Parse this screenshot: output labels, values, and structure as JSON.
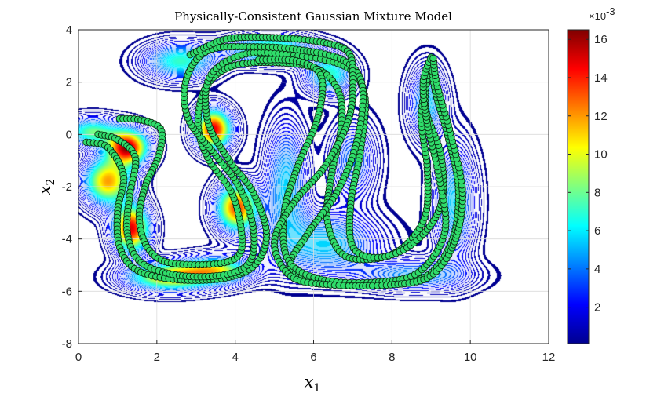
{
  "chart_data": {
    "type": "contour",
    "title": "Physically-Consistent Gaussian Mixture Model",
    "xlabel": "x",
    "xlabel_sub": "1",
    "ylabel": "x",
    "ylabel_sub": "2",
    "xlim": [
      0,
      12
    ],
    "ylim": [
      -8,
      4
    ],
    "xticks": [
      "0",
      "2",
      "4",
      "6",
      "8",
      "10",
      "12"
    ],
    "yticks": [
      "4",
      "2",
      "0",
      "-2",
      "-4",
      "-6",
      "-8"
    ],
    "grid": true,
    "colormap": "jet",
    "colorbar": {
      "ticks": [
        "16",
        "14",
        "12",
        "10",
        "8",
        "6",
        "4",
        "2"
      ],
      "tick_values": [
        16,
        14,
        12,
        10,
        8,
        6,
        4,
        2
      ],
      "range": [
        0.1,
        16.5
      ],
      "exponent_base": "×10",
      "exponent": "-3"
    },
    "gaussians": [
      {
        "mx": 1.25,
        "my": -0.5,
        "sx": 0.35,
        "sy": 0.45,
        "w": 1.0
      },
      {
        "mx": 1.35,
        "my": -3.6,
        "sx": 0.3,
        "sy": 0.6,
        "w": 0.95
      },
      {
        "mx": 0.75,
        "my": -1.8,
        "sx": 0.4,
        "sy": 0.6,
        "w": 0.75
      },
      {
        "mx": 0.35,
        "my": 0.1,
        "sx": 0.45,
        "sy": 0.35,
        "w": 0.5
      },
      {
        "mx": 3.45,
        "my": 0.2,
        "sx": 0.3,
        "sy": 0.5,
        "w": 0.95
      },
      {
        "mx": 4.05,
        "my": -2.8,
        "sx": 0.35,
        "sy": 0.6,
        "w": 0.85
      },
      {
        "mx": 3.5,
        "my": -5.2,
        "sx": 0.6,
        "sy": 0.35,
        "w": 0.6
      },
      {
        "mx": 2.3,
        "my": -5.45,
        "sx": 0.7,
        "sy": 0.35,
        "w": 0.7
      },
      {
        "mx": 2.6,
        "my": 2.8,
        "sx": 0.6,
        "sy": 0.45,
        "w": 0.45
      },
      {
        "mx": 4.9,
        "my": 3.25,
        "sx": 0.7,
        "sy": 0.35,
        "w": 0.55
      },
      {
        "mx": 6.4,
        "my": 2.3,
        "sx": 0.4,
        "sy": 0.5,
        "w": 0.45
      },
      {
        "mx": 5.3,
        "my": -1.9,
        "sx": 0.35,
        "sy": 1.5,
        "w": 0.35
      },
      {
        "mx": 6.3,
        "my": -4.2,
        "sx": 0.9,
        "sy": 0.8,
        "w": 0.35
      },
      {
        "mx": 8.6,
        "my": -5.4,
        "sx": 0.9,
        "sy": 0.4,
        "w": 0.3
      },
      {
        "mx": 9.6,
        "my": -2.6,
        "sx": 0.35,
        "sy": 1.4,
        "w": 0.35
      },
      {
        "mx": 8.9,
        "my": 1.2,
        "sx": 0.3,
        "sy": 0.9,
        "w": 0.35
      },
      {
        "mx": 7.0,
        "my": -1.0,
        "sx": 0.4,
        "sy": 1.0,
        "w": 0.25
      }
    ],
    "demonstrations": [
      [
        [
          1.05,
          0.6
        ],
        [
          1.6,
          0.55
        ],
        [
          2.1,
          0.2
        ],
        [
          2.05,
          -0.8
        ],
        [
          1.7,
          -2.0
        ],
        [
          1.55,
          -3.2
        ],
        [
          1.75,
          -4.3
        ],
        [
          2.3,
          -4.9
        ],
        [
          3.5,
          -4.95
        ],
        [
          4.1,
          -4.6
        ],
        [
          4.15,
          -3.6
        ],
        [
          3.9,
          -2.2
        ],
        [
          3.3,
          -0.9
        ],
        [
          3.05,
          0.4
        ],
        [
          3.25,
          1.8
        ],
        [
          3.9,
          2.6
        ],
        [
          5.0,
          2.75
        ],
        [
          6.1,
          2.5
        ],
        [
          6.65,
          1.6
        ],
        [
          6.7,
          0.2
        ],
        [
          6.45,
          -1.6
        ],
        [
          6.35,
          -3.3
        ],
        [
          6.75,
          -4.6
        ],
        [
          7.6,
          -4.75
        ],
        [
          8.3,
          -4.3
        ],
        [
          8.85,
          -3.1
        ],
        [
          8.9,
          -1.3
        ],
        [
          8.75,
          0.8
        ],
        [
          9.05,
          2.95
        ]
      ],
      [
        [
          0.2,
          -0.3
        ],
        [
          0.75,
          -0.5
        ],
        [
          1.15,
          -1.6
        ],
        [
          1.0,
          -2.9
        ],
        [
          1.05,
          -4.3
        ],
        [
          1.5,
          -5.2
        ],
        [
          2.5,
          -5.55
        ],
        [
          3.7,
          -5.5
        ],
        [
          4.5,
          -5.0
        ],
        [
          4.8,
          -3.8
        ],
        [
          4.45,
          -2.2
        ],
        [
          3.85,
          -1.0
        ],
        [
          3.3,
          0.5
        ],
        [
          3.35,
          2.2
        ],
        [
          4.2,
          3.05
        ],
        [
          5.4,
          3.05
        ],
        [
          6.8,
          2.6
        ],
        [
          7.3,
          1.5
        ],
        [
          7.2,
          -0.6
        ],
        [
          6.95,
          -2.6
        ],
        [
          7.0,
          -4.3
        ],
        [
          7.7,
          -4.7
        ],
        [
          8.6,
          -4.1
        ],
        [
          9.25,
          -2.7
        ],
        [
          9.25,
          -0.8
        ],
        [
          8.85,
          1.1
        ],
        [
          9.0,
          2.95
        ]
      ],
      [
        [
          0.5,
          0.0
        ],
        [
          1.0,
          -0.2
        ],
        [
          1.45,
          -0.9
        ],
        [
          1.3,
          -2.4
        ],
        [
          1.25,
          -3.8
        ],
        [
          1.6,
          -4.9
        ],
        [
          2.6,
          -5.4
        ],
        [
          3.8,
          -5.35
        ],
        [
          4.4,
          -4.8
        ],
        [
          4.45,
          -3.5
        ],
        [
          4.1,
          -2.0
        ],
        [
          3.5,
          -0.8
        ],
        [
          2.8,
          0.6
        ],
        [
          2.75,
          2.1
        ],
        [
          3.3,
          3.2
        ],
        [
          4.5,
          3.35
        ],
        [
          5.8,
          3.2
        ],
        [
          6.8,
          2.8
        ],
        [
          7.25,
          1.8
        ],
        [
          7.1,
          -0.3
        ],
        [
          6.6,
          -2.2
        ],
        [
          5.85,
          -3.8
        ],
        [
          5.4,
          -5.1
        ],
        [
          6.3,
          -5.65
        ],
        [
          7.8,
          -5.75
        ],
        [
          8.9,
          -5.4
        ],
        [
          9.55,
          -4.0
        ],
        [
          9.7,
          -2.1
        ],
        [
          9.45,
          -0.2
        ],
        [
          9.1,
          1.7
        ],
        [
          9.0,
          2.95
        ]
      ],
      [
        [
          4.6,
          2.85
        ],
        [
          5.6,
          2.8
        ],
        [
          6.2,
          2.2
        ],
        [
          6.1,
          0.6
        ],
        [
          5.6,
          -1.2
        ],
        [
          5.25,
          -3.0
        ],
        [
          5.35,
          -4.8
        ],
        [
          6.2,
          -5.55
        ],
        [
          7.6,
          -5.65
        ],
        [
          8.7,
          -5.25
        ],
        [
          9.35,
          -3.7
        ],
        [
          9.2,
          -1.6
        ],
        [
          8.9,
          0.4
        ],
        [
          8.8,
          2.0
        ],
        [
          9.0,
          2.95
        ]
      ],
      [
        [
          2.85,
          3.05
        ],
        [
          3.8,
          3.65
        ],
        [
          5.0,
          3.7
        ],
        [
          6.1,
          3.55
        ],
        [
          6.85,
          3.2
        ],
        [
          7.0,
          2.3
        ],
        [
          6.9,
          0.6
        ],
        [
          6.3,
          -1.2
        ],
        [
          5.5,
          -2.6
        ],
        [
          5.0,
          -4.1
        ],
        [
          5.4,
          -5.4
        ],
        [
          6.4,
          -5.75
        ],
        [
          8.0,
          -5.75
        ],
        [
          9.0,
          -5.4
        ],
        [
          9.6,
          -4.1
        ],
        [
          9.8,
          -2.2
        ],
        [
          9.5,
          0.0
        ],
        [
          9.15,
          1.9
        ],
        [
          9.05,
          2.95
        ]
      ]
    ]
  }
}
